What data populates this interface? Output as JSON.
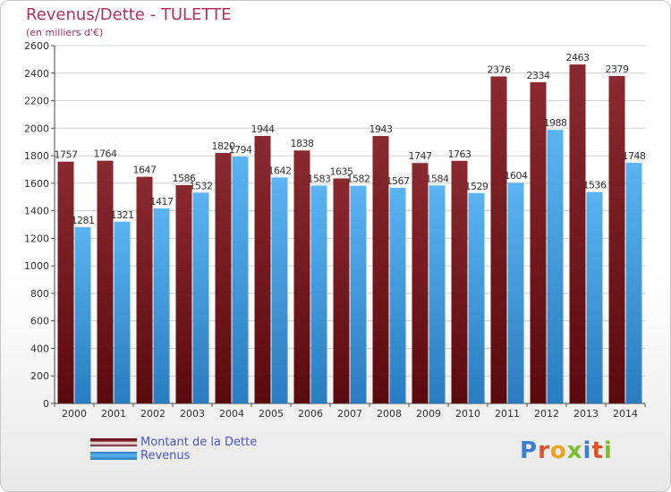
{
  "header": {
    "title": "Revenus/Dette - TULETTE",
    "subtitle": "(en milliers d'€)"
  },
  "logo": {
    "text": "Proxiti"
  },
  "chart_data": {
    "type": "bar",
    "title": "Revenus/Dette - TULETTE",
    "subtitle": "(en milliers d'€)",
    "xlabel": "",
    "ylabel": "",
    "ylim": [
      0,
      2600
    ],
    "yticks": [
      0,
      200,
      400,
      600,
      800,
      1000,
      1200,
      1400,
      1600,
      1800,
      2000,
      2200,
      2400,
      2600
    ],
    "grid": true,
    "legend_position": "bottom-left",
    "categories": [
      "2000",
      "2001",
      "2002",
      "2003",
      "2004",
      "2005",
      "2006",
      "2007",
      "2008",
      "2009",
      "2010",
      "2011",
      "2012",
      "2013",
      "2014"
    ],
    "series": [
      {
        "name": "Montant de la Dette",
        "color": "#7a1c24",
        "values": [
          1757,
          1764,
          1647,
          1586,
          1820,
          1944,
          1838,
          1635,
          1943,
          1747,
          1763,
          2376,
          2334,
          2463,
          2379
        ]
      },
      {
        "name": "Revenus",
        "color": "#4ea6e6",
        "values": [
          1281,
          1321,
          1417,
          1532,
          1794,
          1642,
          1583,
          1582,
          1567,
          1584,
          1529,
          1604,
          1988,
          1536,
          1748
        ]
      }
    ]
  }
}
